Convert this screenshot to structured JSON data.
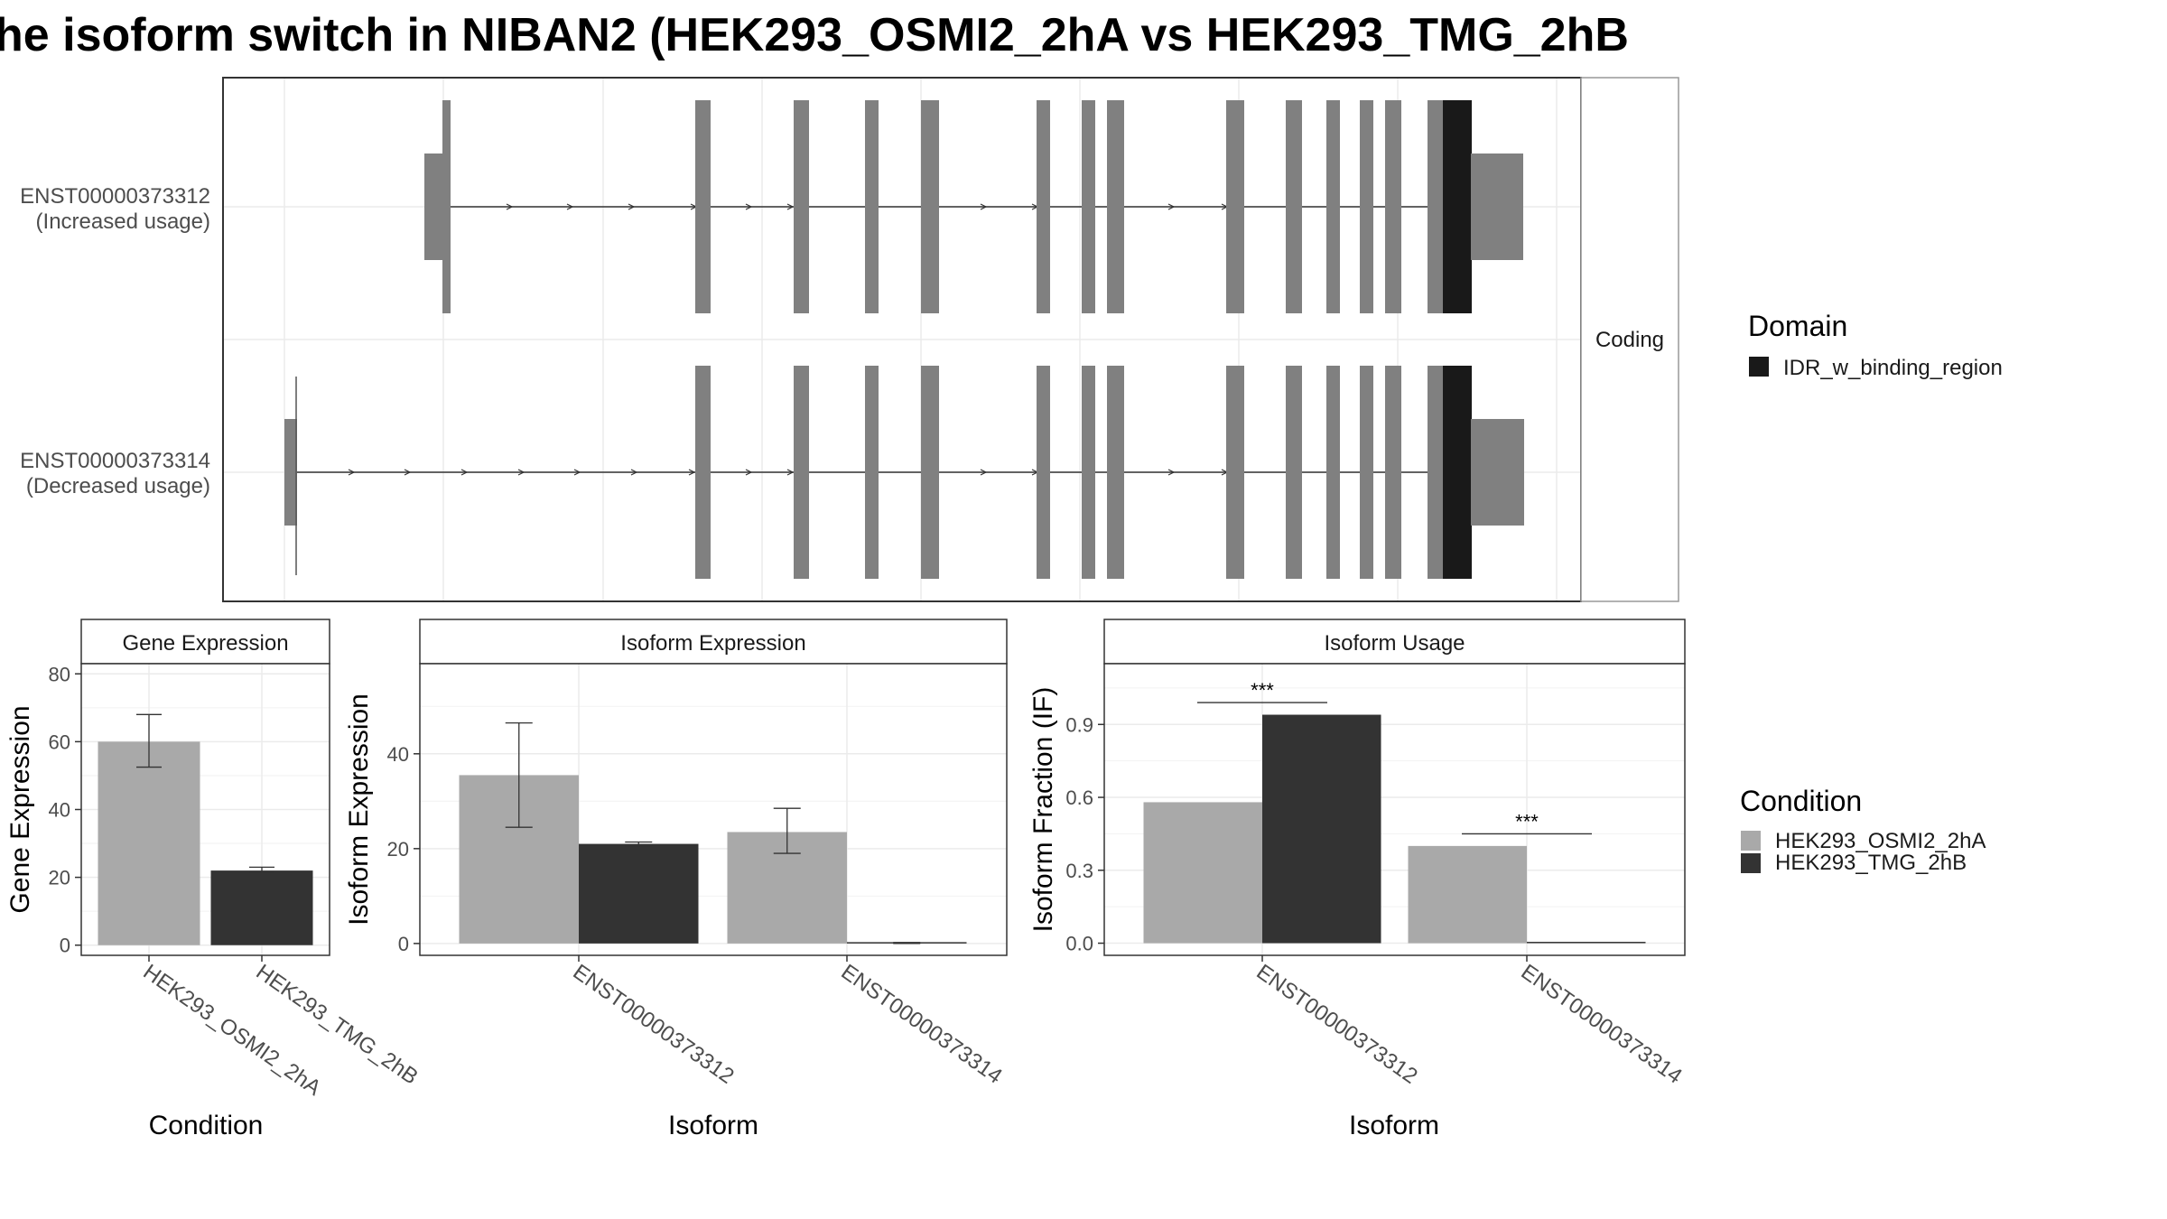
{
  "title": "he isoform switch in NIBAN2 (HEK293_OSMI2_2hA vs HEK293_TMG_2hB",
  "colors": {
    "exon": "#808080",
    "domain": "#191919",
    "cond_a": "#a9a9a9",
    "cond_b": "#333333",
    "grid": "#ebebeb",
    "panel_border": "#333333"
  },
  "transcripts": {
    "facet_label": "Coding",
    "tracks": [
      {
        "id": "ENST00000373312",
        "usage": "(Increased usage)"
      },
      {
        "id": "ENST00000373314",
        "usage": "(Decreased usage)"
      }
    ]
  },
  "legends": {
    "domain_title": "Domain",
    "domain_items": [
      "IDR_w_binding_region"
    ],
    "condition_title": "Condition",
    "condition_items": [
      "HEK293_OSMI2_2hA",
      "HEK293_TMG_2hB"
    ]
  },
  "chart_data": [
    {
      "type": "bar",
      "title": "Gene Expression",
      "xlabel": "Condition",
      "ylabel": "Gene Expression",
      "categories": [
        "HEK293_OSMI2_2hA",
        "HEK293_TMG_2hB"
      ],
      "values": [
        60,
        22
      ],
      "errors": [
        [
          52.5,
          68
        ],
        [
          21.5,
          23
        ]
      ],
      "ylim": [
        -3,
        83
      ],
      "yticks": [
        0,
        20,
        40,
        60,
        80
      ],
      "ytick_labels": [
        "0",
        "20",
        "40",
        "60",
        "80"
      ]
    },
    {
      "type": "bar",
      "title": "Isoform Expression",
      "xlabel": "Isoform",
      "ylabel": "Isoform Expression",
      "categories": [
        "ENST00000373312",
        "ENST00000373314"
      ],
      "series": [
        {
          "values": [
            35.5,
            23.5
          ],
          "errors": [
            [
              24.5,
              46.5
            ],
            [
              19,
              28.5
            ]
          ]
        },
        {
          "values": [
            21,
            0.1
          ],
          "errors": [
            [
              20.6,
              21.4
            ],
            [
              0,
              0.2
            ]
          ]
        }
      ],
      "ylim": [
        -2.5,
        59
      ],
      "yticks": [
        0,
        20,
        40
      ],
      "ytick_labels": [
        "0",
        "20",
        "40"
      ]
    },
    {
      "type": "bar",
      "title": "Isoform Usage",
      "xlabel": "Isoform",
      "ylabel": "Isoform Fraction (IF)",
      "categories": [
        "ENST00000373312",
        "ENST00000373314"
      ],
      "series": [
        {
          "values": [
            0.58,
            0.4
          ]
        },
        {
          "values": [
            0.94,
            0.0
          ]
        }
      ],
      "significance": [
        {
          "label": "***",
          "y": 0.99
        },
        {
          "label": "***",
          "y": 0.45
        }
      ],
      "ylim": [
        -0.05,
        1.15
      ],
      "yticks": [
        0.0,
        0.3,
        0.6,
        0.9
      ],
      "ytick_labels": [
        "0.0",
        "0.3",
        "0.6",
        "0.9"
      ]
    }
  ]
}
